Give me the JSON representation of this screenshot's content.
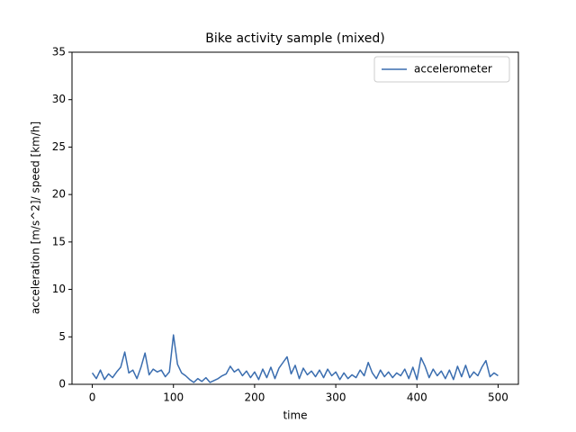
{
  "chart_data": {
    "type": "line",
    "title": "Bike activity sample (mixed)",
    "xlabel": "time",
    "ylabel": "acceleration [m/s^2]/ speed [km/h]",
    "x": [
      0,
      5,
      10,
      15,
      20,
      25,
      30,
      35,
      40,
      45,
      50,
      55,
      60,
      65,
      70,
      75,
      80,
      85,
      90,
      95,
      100,
      105,
      110,
      115,
      120,
      125,
      130,
      135,
      140,
      145,
      150,
      155,
      160,
      165,
      170,
      175,
      180,
      185,
      190,
      195,
      200,
      205,
      210,
      215,
      220,
      225,
      230,
      235,
      240,
      245,
      250,
      255,
      260,
      265,
      270,
      275,
      280,
      285,
      290,
      295,
      300,
      305,
      310,
      315,
      320,
      325,
      330,
      335,
      340,
      345,
      350,
      355,
      360,
      365,
      370,
      375,
      380,
      385,
      390,
      395,
      400,
      405,
      410,
      415,
      420,
      425,
      430,
      435,
      440,
      445,
      450,
      455,
      460,
      465,
      470,
      475,
      480,
      485,
      490,
      495,
      500
    ],
    "series": [
      {
        "name": "accelerometer",
        "color": "#3a6daf",
        "values": [
          1.2,
          0.6,
          1.5,
          0.5,
          1.1,
          0.7,
          1.3,
          1.8,
          3.4,
          1.2,
          1.5,
          0.6,
          1.8,
          3.3,
          1.0,
          1.6,
          1.3,
          1.5,
          0.8,
          1.3,
          5.2,
          2.1,
          1.2,
          0.9,
          0.5,
          0.2,
          0.6,
          0.3,
          0.7,
          0.2,
          0.4,
          0.6,
          0.9,
          1.1,
          1.9,
          1.3,
          1.6,
          0.9,
          1.4,
          0.7,
          1.3,
          0.5,
          1.6,
          0.7,
          1.8,
          0.6,
          1.7,
          2.3,
          2.9,
          1.1,
          2.0,
          0.6,
          1.7,
          1.0,
          1.4,
          0.8,
          1.5,
          0.7,
          1.6,
          0.9,
          1.3,
          0.5,
          1.2,
          0.6,
          1.0,
          0.7,
          1.5,
          0.9,
          2.3,
          1.2,
          0.6,
          1.5,
          0.8,
          1.3,
          0.7,
          1.2,
          0.9,
          1.6,
          0.6,
          1.8,
          0.5,
          2.8,
          1.9,
          0.7,
          1.6,
          0.9,
          1.4,
          0.6,
          1.5,
          0.5,
          1.9,
          0.8,
          2.0,
          0.7,
          1.3,
          0.9,
          1.8,
          2.5,
          0.8,
          1.2,
          0.9
        ]
      }
    ],
    "xlim": [
      -25,
      525
    ],
    "ylim": [
      0,
      35
    ],
    "xticks": [
      0,
      100,
      200,
      300,
      400,
      500
    ],
    "yticks": [
      0,
      5,
      10,
      15,
      20,
      25,
      30,
      35
    ],
    "grid": false,
    "legend": "upper right"
  }
}
